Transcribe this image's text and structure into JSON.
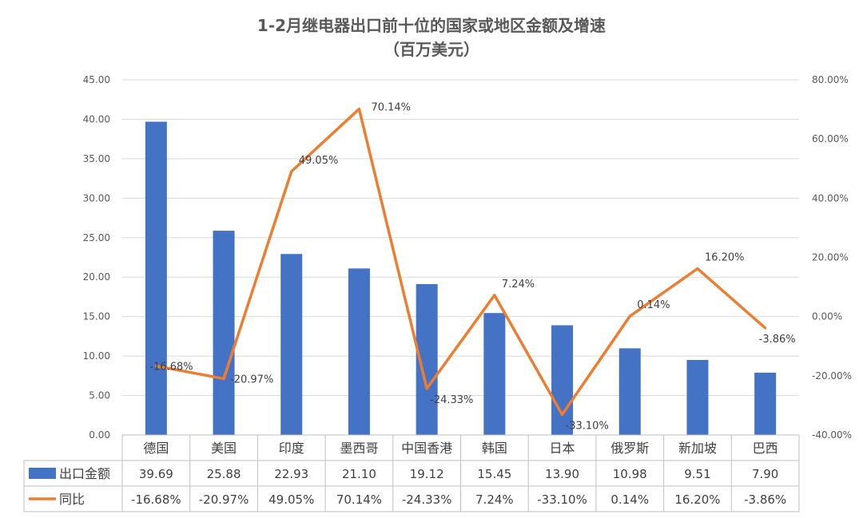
{
  "chart_data": {
    "type": "bar",
    "title": "1-2月继电器出口前十位的国家或地区金额及增速",
    "subtitle": "（百万美元）",
    "categories": [
      "德国",
      "美国",
      "印度",
      "墨西哥",
      "中国香港",
      "韩国",
      "日本",
      "俄罗斯",
      "新加坡",
      "巴西"
    ],
    "series": [
      {
        "name": "出口金额",
        "chart_type": "bar",
        "axis": "left",
        "color": "#4472C4",
        "values": [
          39.69,
          25.88,
          22.93,
          21.1,
          19.12,
          15.45,
          13.9,
          10.98,
          9.51,
          7.9
        ],
        "labels": [
          "39.69",
          "25.88",
          "22.93",
          "21.10",
          "19.12",
          "15.45",
          "13.90",
          "10.98",
          "9.51",
          "7.90"
        ]
      },
      {
        "name": "同比",
        "chart_type": "line",
        "axis": "right",
        "color": "#ED7D31",
        "values": [
          -16.68,
          -20.97,
          49.05,
          70.14,
          -24.33,
          7.24,
          -33.1,
          0.14,
          16.2,
          -3.86
        ],
        "labels": [
          "-16.68%",
          "-20.97%",
          "49.05%",
          "70.14%",
          "-24.33%",
          "7.24%",
          "-33.10%",
          "0.14%",
          "16.20%",
          "-3.86%"
        ]
      }
    ],
    "left_axis": {
      "ylim": [
        0,
        45
      ],
      "ticks": [
        "0.00",
        "5.00",
        "10.00",
        "15.00",
        "20.00",
        "25.00",
        "30.00",
        "35.00",
        "40.00",
        "45.00"
      ]
    },
    "right_axis": {
      "ylim": [
        -40,
        80
      ],
      "ticks": [
        "-40.00%",
        "-20.00%",
        "0.00%",
        "20.00%",
        "40.00%",
        "60.00%",
        "80.00%"
      ]
    },
    "grid": true,
    "data_table": true
  }
}
